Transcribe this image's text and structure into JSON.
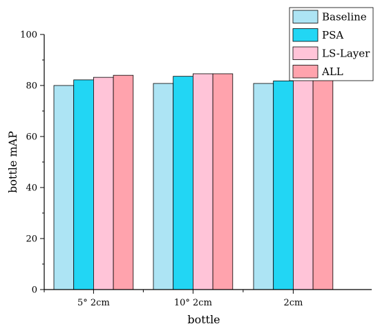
{
  "chart_data": {
    "type": "bar",
    "categories": [
      "5° 2cm",
      "10° 2cm",
      "2cm"
    ],
    "series": [
      {
        "name": "Baseline",
        "values": [
          80.0,
          80.8,
          80.8
        ],
        "color": "#ade4f4"
      },
      {
        "name": "PSA",
        "values": [
          82.2,
          83.6,
          81.8
        ],
        "color": "#22d6f4"
      },
      {
        "name": "LS-Layer",
        "values": [
          83.2,
          84.6,
          82.8
        ],
        "color": "#ffc4d8"
      },
      {
        "name": "ALL",
        "values": [
          84.0,
          84.6,
          83.2
        ],
        "color": "#ffa3ad"
      }
    ],
    "xlabel": "bottle",
    "ylabel": "bottle mAP",
    "ylim": [
      0,
      100
    ],
    "yticks": [
      0,
      20,
      40,
      60,
      80,
      100
    ],
    "grid": false,
    "legend_position": "top-right"
  }
}
